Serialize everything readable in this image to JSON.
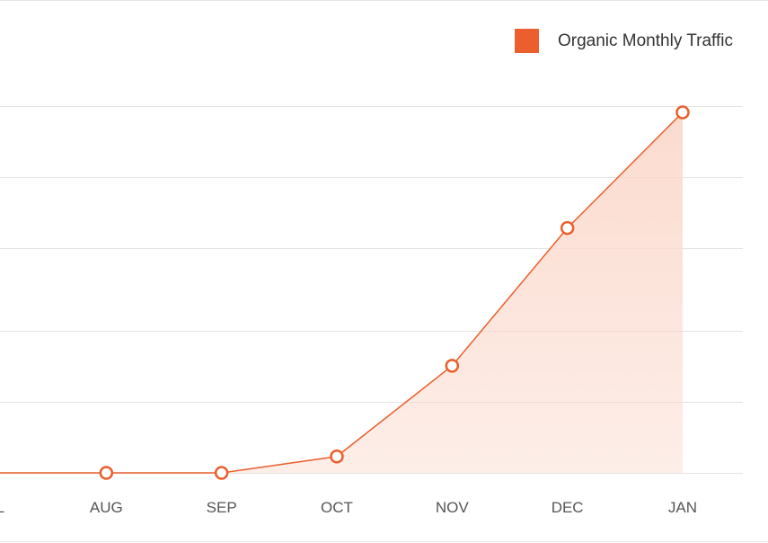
{
  "chart_data": {
    "type": "area",
    "categories": [
      "JUL",
      "AUG",
      "SEP",
      "OCT",
      "NOV",
      "DEC",
      "JAN"
    ],
    "series": [
      {
        "name": "Organic Monthly Traffic",
        "values": [
          0,
          0,
          0,
          23,
          150,
          343,
          505
        ]
      }
    ],
    "ylim": [
      0,
      510
    ],
    "grid": true,
    "legend": "top-right"
  },
  "colors": {
    "line": "#ea5f2d",
    "swatch": "#ea5f2d",
    "fill": "#fbd9cc",
    "grid": "#e3e3e3",
    "tick": "#555555"
  }
}
